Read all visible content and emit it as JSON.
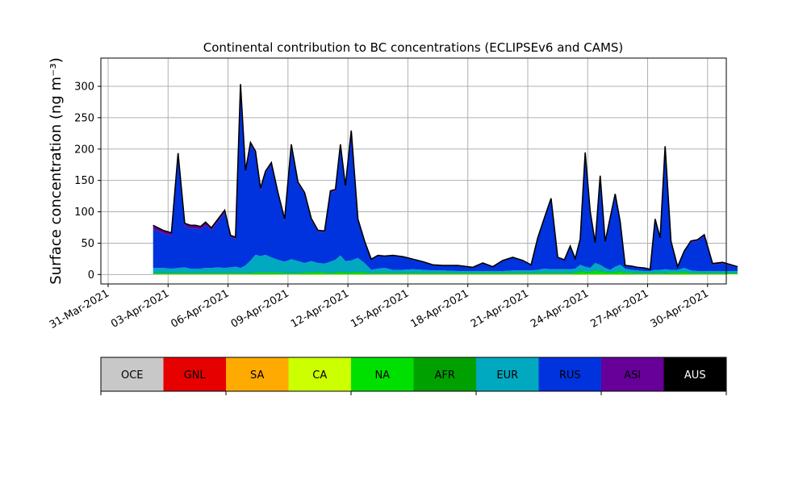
{
  "chart_data": {
    "type": "area",
    "title": "Continental contribution to BC concentrations (ECLIPSEv6 and CAMS)",
    "xlabel": "",
    "ylabel": "Surface concentration (ng m⁻³)",
    "x_range": [
      "2021-03-31",
      "2021-05-01"
    ],
    "ylim": [
      -15,
      345
    ],
    "y_ticks": [
      0,
      50,
      100,
      150,
      200,
      250,
      300
    ],
    "x_ticks": [
      "31-Mar-2021",
      "03-Apr-2021",
      "06-Apr-2021",
      "09-Apr-2021",
      "12-Apr-2021",
      "15-Apr-2021",
      "18-Apr-2021",
      "21-Apr-2021",
      "24-Apr-2021",
      "27-Apr-2021",
      "30-Apr-2021"
    ],
    "grid": true,
    "stacking_order": [
      "AUS",
      "ASI",
      "RUS",
      "EUR",
      "AFR",
      "NA",
      "CA",
      "SA",
      "GNL",
      "OCE"
    ],
    "dates": [
      "2021-04-02",
      "2021-04-02",
      "2021-04-03",
      "2021-04-03",
      "2021-04-03",
      "2021-04-04",
      "2021-04-04",
      "2021-04-04",
      "2021-04-04",
      "2021-04-05",
      "2021-04-05",
      "2021-04-05",
      "2021-04-06",
      "2021-04-06",
      "2021-04-06",
      "2021-04-06",
      "2021-04-07",
      "2021-04-07",
      "2021-04-07",
      "2021-04-07",
      "2021-04-08",
      "2021-04-08",
      "2021-04-08",
      "2021-04-09",
      "2021-04-09",
      "2021-04-09",
      "2021-04-10",
      "2021-04-10",
      "2021-04-10",
      "2021-04-11",
      "2021-04-11",
      "2021-04-11",
      "2021-04-11",
      "2021-04-12",
      "2021-04-12",
      "2021-04-12",
      "2021-04-13",
      "2021-04-13",
      "2021-04-13",
      "2021-04-14",
      "2021-04-14",
      "2021-04-15",
      "2021-04-15",
      "2021-04-16",
      "2021-04-16",
      "2021-04-17",
      "2021-04-18",
      "2021-04-18",
      "2021-04-19",
      "2021-04-19",
      "2021-04-20",
      "2021-04-20",
      "2021-04-21",
      "2021-04-21",
      "2021-04-21",
      "2021-04-22",
      "2021-04-22",
      "2021-04-22",
      "2021-04-23",
      "2021-04-23",
      "2021-04-23",
      "2021-04-23",
      "2021-04-24",
      "2021-04-24",
      "2021-04-24",
      "2021-04-24",
      "2021-04-25",
      "2021-04-25",
      "2021-04-25",
      "2021-04-25",
      "2021-04-26",
      "2021-04-26",
      "2021-04-26",
      "2021-04-27",
      "2021-04-27",
      "2021-04-27",
      "2021-04-27",
      "2021-04-28",
      "2021-04-28",
      "2021-04-28",
      "2021-04-29",
      "2021-04-29",
      "2021-04-29",
      "2021-04-30",
      "2021-04-30",
      "2021-05-01"
    ],
    "series": [
      {
        "name": "OCE",
        "color": "#c8c8c8",
        "values": [
          0,
          0,
          0,
          0,
          0,
          0,
          0,
          0,
          0,
          0,
          0,
          0,
          0,
          0,
          0,
          0,
          0,
          0,
          0,
          0,
          0,
          0,
          0,
          0,
          0,
          0,
          0,
          0,
          0,
          0,
          0,
          0,
          0,
          0,
          0,
          0,
          0,
          0,
          0,
          0,
          0,
          0,
          0,
          0,
          0,
          0,
          0,
          0,
          0,
          0,
          0,
          0,
          0,
          0,
          0,
          0,
          0,
          0,
          0,
          0,
          0,
          0,
          0,
          0,
          0,
          0,
          0,
          0,
          0,
          0,
          0,
          0,
          0,
          0,
          0,
          0,
          0,
          0,
          0,
          0,
          0,
          0,
          0,
          0,
          0,
          0
        ]
      },
      {
        "name": "GNL",
        "color": "#e60000",
        "values": [
          0,
          0,
          0,
          0,
          0,
          0,
          0,
          0,
          0,
          0,
          0,
          0,
          0,
          0,
          0,
          0,
          0,
          0,
          0,
          0,
          0,
          0,
          0,
          0,
          0,
          0,
          0,
          0,
          0,
          0,
          0,
          0,
          0,
          0,
          0,
          0,
          0,
          0,
          0,
          0,
          0,
          0,
          0,
          0,
          0,
          0,
          0,
          0,
          0,
          0,
          0,
          0,
          0,
          0,
          0,
          0,
          0,
          0,
          0,
          0,
          0,
          0,
          0,
          0,
          0,
          0,
          0,
          0,
          0,
          0,
          0,
          0,
          0,
          0,
          0,
          0,
          0,
          0,
          0,
          0,
          0,
          0,
          0,
          0,
          0,
          0
        ]
      },
      {
        "name": "SA",
        "color": "#ffaa00",
        "values": [
          0,
          0,
          0,
          0,
          0,
          0,
          0,
          0,
          0,
          0,
          0,
          0,
          0,
          0,
          0,
          0,
          0,
          0,
          0,
          0,
          0,
          0,
          0,
          0,
          0,
          0,
          0,
          0,
          0,
          0,
          0,
          0,
          0,
          0,
          0,
          0,
          0,
          0,
          0,
          0,
          0,
          0,
          0,
          0,
          0,
          0,
          0,
          0,
          0,
          0,
          0,
          0,
          0,
          0,
          0,
          0,
          0,
          0,
          0,
          0,
          0,
          0,
          0,
          0,
          0,
          0,
          0,
          0,
          0,
          0,
          0,
          0,
          0,
          0,
          0,
          0,
          0,
          0,
          0,
          0,
          0,
          0,
          0,
          0,
          0,
          0
        ]
      },
      {
        "name": "CA",
        "color": "#ccff00",
        "values": [
          0.5,
          0.5,
          0.5,
          0.5,
          0.5,
          0.5,
          0.5,
          0.5,
          0.5,
          0.5,
          0.5,
          0.5,
          0.5,
          0.5,
          0.5,
          0.5,
          0.5,
          0.5,
          0.5,
          0.5,
          0.5,
          0.5,
          0.5,
          0.5,
          0.5,
          0.5,
          0.5,
          0.5,
          0.5,
          0.5,
          0.5,
          0.5,
          0.5,
          0.5,
          0.5,
          0.5,
          0.5,
          0.5,
          0.5,
          0.5,
          0.5,
          0.5,
          0.5,
          0.5,
          0.5,
          0.5,
          0.5,
          0.5,
          0.5,
          0.5,
          0.5,
          0.5,
          0.5,
          0.5,
          0.5,
          0.5,
          0.5,
          0.5,
          0.5,
          0.5,
          0.5,
          0.5,
          0.5,
          0.5,
          0.5,
          0.5,
          0.5,
          0.5,
          0.5,
          0.5,
          0.5,
          0.5,
          0.5,
          0.5,
          0.5,
          0.5,
          0.5,
          0.5,
          0.5,
          0.5,
          0.5,
          0.5,
          0.5,
          0.5,
          0.5,
          0.5
        ]
      },
      {
        "name": "NA",
        "color": "#00e000",
        "values": [
          1,
          1,
          1,
          1,
          1,
          1,
          1,
          1,
          1,
          1,
          1,
          1,
          1,
          1,
          1,
          1,
          1,
          2,
          2,
          2,
          2,
          2,
          1,
          1,
          1,
          2,
          2,
          3,
          2,
          1,
          2,
          3,
          2,
          2,
          3,
          2,
          1,
          1,
          1,
          1,
          1,
          1,
          1,
          1,
          1,
          1,
          1,
          1,
          1,
          1,
          1,
          1,
          1,
          1,
          1,
          1,
          1,
          1,
          1,
          2,
          4,
          3,
          3,
          5,
          4,
          3,
          2,
          3,
          4,
          2,
          2,
          1,
          1,
          1,
          1,
          1,
          1,
          2,
          2,
          3,
          1,
          1,
          1,
          1,
          1,
          1
        ]
      },
      {
        "name": "AFR",
        "color": "#00a000",
        "values": [
          1,
          1,
          1,
          1,
          1,
          1,
          1,
          1,
          1,
          1,
          1,
          1,
          1,
          1,
          1,
          1,
          1,
          1,
          1,
          1,
          1,
          1,
          1,
          1,
          1,
          1,
          1,
          1,
          1,
          1,
          1,
          1,
          1,
          1,
          1,
          1,
          1,
          1,
          1,
          1,
          1,
          1,
          1,
          1,
          1,
          1,
          1,
          1,
          1,
          1,
          1,
          1,
          1,
          1,
          1,
          1,
          1,
          1,
          1,
          1,
          1,
          1,
          1,
          1,
          1,
          1,
          1,
          1,
          1,
          1,
          1,
          1,
          1,
          1,
          1,
          1,
          1,
          1,
          1,
          1,
          1,
          1,
          1,
          1,
          1,
          1
        ]
      },
      {
        "name": "EUR",
        "color": "#00a8c0",
        "values": [
          8,
          8,
          7,
          8,
          9,
          7,
          7,
          7,
          8,
          8,
          9,
          8,
          9,
          10,
          8,
          12,
          20,
          28,
          26,
          28,
          24,
          20,
          18,
          22,
          19,
          15,
          18,
          14,
          14,
          18,
          20,
          26,
          18,
          19,
          22,
          15,
          5,
          7,
          8,
          5,
          5,
          6,
          5,
          4,
          4,
          3,
          3,
          3,
          3,
          3,
          4,
          4,
          4,
          5,
          7,
          6,
          6,
          6,
          6,
          6,
          10,
          8,
          6,
          12,
          10,
          6,
          4,
          8,
          10,
          6,
          4,
          4,
          3,
          3,
          5,
          5,
          6,
          4,
          4,
          6,
          4,
          3,
          3,
          3,
          3,
          3
        ]
      },
      {
        "name": "RUS",
        "color": "#0033dd",
        "values": [
          62,
          55,
          52,
          179,
          66,
          64,
          64,
          62,
          68,
          60,
          73,
          88,
          48,
          44,
          290,
          148,
          185,
          162,
          105,
          130,
          148,
          104,
          65,
          180,
          123,
          110,
          65,
          50,
          50,
          110,
          110,
          175,
          118,
          205,
          60,
          33,
          16,
          20,
          18,
          22,
          20,
          15,
          12,
          8,
          7,
          8,
          5,
          12,
          6,
          16,
          20,
          15,
          8,
          50,
          80,
          112,
          18,
          14,
          36,
          14,
          38,
          180,
          88,
          30,
          140,
          40,
          82,
          115,
          68,
          4,
          5,
          4,
          4,
          2,
          80,
          50,
          195,
          45,
          4,
          26,
          45,
          48,
          56,
          10,
          12,
          6
        ]
      },
      {
        "name": "ASI",
        "color": "#660099",
        "values": [
          6,
          5,
          5,
          4,
          4,
          5,
          5,
          5,
          5,
          4,
          4,
          4,
          3,
          3,
          3,
          3,
          3,
          3,
          3,
          3,
          3,
          3,
          3,
          3,
          3,
          2,
          3,
          2,
          2,
          3,
          2,
          2,
          2,
          2,
          2,
          2,
          1,
          1,
          1,
          1,
          1,
          1,
          1,
          1,
          1,
          1,
          1,
          1,
          1,
          1,
          1,
          1,
          1,
          1,
          1,
          1,
          1,
          1,
          1,
          2,
          3,
          2,
          2,
          2,
          2,
          2,
          1,
          1,
          1,
          1,
          1,
          1,
          1,
          1,
          1,
          1,
          1,
          1,
          1,
          1,
          2,
          2,
          2,
          2,
          2,
          1
        ]
      },
      {
        "name": "AUS",
        "color": "#000000",
        "values": [
          0,
          0,
          0,
          0,
          0,
          0,
          0,
          0,
          0,
          0,
          0,
          0,
          0,
          0,
          0,
          0,
          0,
          0,
          0,
          0,
          0,
          0,
          0,
          0,
          0,
          0,
          0,
          0,
          0,
          0,
          0,
          0,
          0,
          0,
          0,
          0,
          0,
          0,
          0,
          0,
          0,
          0,
          0,
          0,
          0,
          0,
          0,
          0,
          0,
          0,
          0,
          0,
          0,
          0,
          0,
          0,
          0,
          0,
          0,
          0,
          0,
          0,
          0,
          0,
          0,
          0,
          0,
          0,
          0,
          0,
          0,
          0,
          0,
          0,
          0,
          0,
          0,
          0,
          0,
          0,
          0,
          0,
          0,
          0,
          0,
          0
        ]
      }
    ]
  },
  "legend": {
    "items": [
      {
        "label": "OCE",
        "color": "#c8c8c8",
        "text_color": "#000000"
      },
      {
        "label": "GNL",
        "color": "#e60000",
        "text_color": "#000000"
      },
      {
        "label": "SA",
        "color": "#ffaa00",
        "text_color": "#000000"
      },
      {
        "label": "CA",
        "color": "#ccff00",
        "text_color": "#000000"
      },
      {
        "label": "NA",
        "color": "#00e000",
        "text_color": "#000000"
      },
      {
        "label": "AFR",
        "color": "#00a000",
        "text_color": "#000000"
      },
      {
        "label": "EUR",
        "color": "#00a8c0",
        "text_color": "#000000"
      },
      {
        "label": "RUS",
        "color": "#0033dd",
        "text_color": "#000000"
      },
      {
        "label": "ASI",
        "color": "#660099",
        "text_color": "#000000"
      },
      {
        "label": "AUS",
        "color": "#000000",
        "text_color": "#ffffff"
      }
    ]
  }
}
